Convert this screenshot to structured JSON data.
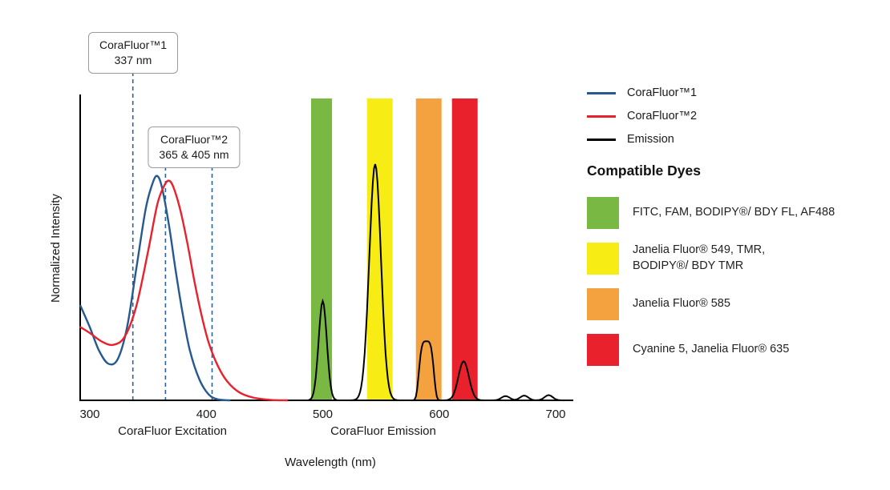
{
  "colors": {
    "blue": "#25598f",
    "red": "#e8212d",
    "black": "#000000",
    "dashed": "#2b6399",
    "band_green": "#79b843",
    "band_yellow": "#f7ec13",
    "band_orange": "#f4a240",
    "band_red": "#e8212d"
  },
  "callouts": [
    {
      "title": "CoraFluor™1",
      "value": "337 nm"
    },
    {
      "title": "CoraFluor™2",
      "value": "365 & 405 nm"
    }
  ],
  "legend": {
    "items": [
      {
        "label": "CoraFluor™1",
        "color": "#25598f"
      },
      {
        "label": "CoraFluor™2",
        "color": "#e8212d"
      },
      {
        "label": "Emission",
        "color": "#000000"
      }
    ]
  },
  "compatible_dyes": {
    "heading": "Compatible Dyes",
    "items": [
      {
        "color": "#79b843",
        "line1": "FITC, FAM, BODIPY®/ BDY FL, AF488",
        "line2": ""
      },
      {
        "color": "#f7ec13",
        "line1": "Janelia Fluor® 549, TMR,",
        "line2": "BODIPY®/ BDY TMR"
      },
      {
        "color": "#f4a240",
        "line1": "Janelia Fluor® 585",
        "line2": ""
      },
      {
        "color": "#e8212d",
        "line1": "Cyanine 5, Janelia Fluor® 635",
        "line2": ""
      }
    ]
  },
  "chart_data": {
    "type": "line",
    "title": "",
    "xlabel": "Wavelength (nm)",
    "ylabel": "Normalized Intensity",
    "x_ticks": [
      300,
      400,
      500,
      600,
      700
    ],
    "xlim": [
      300,
      715
    ],
    "ylim": [
      0,
      1.05
    ],
    "grid": false,
    "legend_position": "right",
    "region_labels": [
      {
        "label": "CoraFluor Excitation",
        "center_nm": 371
      },
      {
        "label": "CoraFluor Emission",
        "center_nm": 552
      }
    ],
    "excitation_markers_nm": [
      337,
      365,
      405
    ],
    "bands": [
      {
        "name": "green-filter",
        "from_nm": 490,
        "to_nm": 508,
        "color": "#79b843"
      },
      {
        "name": "yellow-filter",
        "from_nm": 538,
        "to_nm": 560,
        "color": "#f7ec13"
      },
      {
        "name": "orange-filter",
        "from_nm": 580,
        "to_nm": 602,
        "color": "#f4a240"
      },
      {
        "name": "red-filter",
        "from_nm": 611,
        "to_nm": 633,
        "color": "#e8212d"
      }
    ],
    "series": [
      {
        "name": "CoraFluor™1 excitation",
        "color": "#25598f",
        "points": [
          [
            292,
            0.4
          ],
          [
            300,
            0.31
          ],
          [
            308,
            0.21
          ],
          [
            316,
            0.155
          ],
          [
            324,
            0.175
          ],
          [
            332,
            0.31
          ],
          [
            340,
            0.56
          ],
          [
            348,
            0.81
          ],
          [
            354,
            0.92
          ],
          [
            358,
            0.95
          ],
          [
            362,
            0.9
          ],
          [
            368,
            0.74
          ],
          [
            374,
            0.54
          ],
          [
            380,
            0.36
          ],
          [
            386,
            0.21
          ],
          [
            394,
            0.09
          ],
          [
            402,
            0.025
          ],
          [
            410,
            0.004
          ],
          [
            420,
            0
          ]
        ]
      },
      {
        "name": "CoraFluor™2 excitation",
        "color": "#e8212d",
        "points": [
          [
            292,
            0.31
          ],
          [
            300,
            0.285
          ],
          [
            310,
            0.25
          ],
          [
            320,
            0.235
          ],
          [
            330,
            0.27
          ],
          [
            340,
            0.4
          ],
          [
            350,
            0.63
          ],
          [
            358,
            0.83
          ],
          [
            364,
            0.91
          ],
          [
            368,
            0.93
          ],
          [
            372,
            0.9
          ],
          [
            378,
            0.8
          ],
          [
            384,
            0.66
          ],
          [
            390,
            0.5
          ],
          [
            396,
            0.36
          ],
          [
            402,
            0.245
          ],
          [
            410,
            0.145
          ],
          [
            418,
            0.08
          ],
          [
            428,
            0.035
          ],
          [
            440,
            0.012
          ],
          [
            455,
            0.002
          ],
          [
            470,
            0
          ]
        ]
      },
      {
        "name": "Emission",
        "color": "#000000",
        "range_nm": [
          470,
          713
        ],
        "peaks": [
          {
            "center": 500,
            "height": 0.42,
            "sigma": 3.5
          },
          {
            "center": 545,
            "height": 1.0,
            "sigma": 5
          },
          {
            "center": 589,
            "height": 0.25,
            "sigma": 7,
            "power": 4
          },
          {
            "center": 621,
            "height": 0.165,
            "sigma": 4.5
          },
          {
            "center": 657,
            "height": 0.018,
            "sigma": 3.5
          },
          {
            "center": 673,
            "height": 0.02,
            "sigma": 3.5
          },
          {
            "center": 694,
            "height": 0.022,
            "sigma": 3.5
          }
        ]
      }
    ]
  }
}
